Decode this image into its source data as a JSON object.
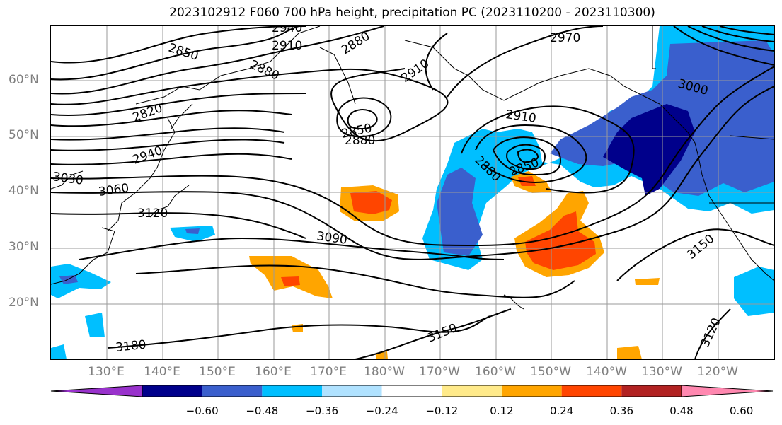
{
  "title": "2023102912 F060 700 hPa height, precipitation PC (2023110200 - 2023110300)",
  "lat_labels": [
    "60°N",
    "50°N",
    "40°N",
    "30°N",
    "20°N"
  ],
  "lon_labels": [
    "130°E",
    "140°E",
    "150°E",
    "160°E",
    "170°E",
    "180°W",
    "170°W",
    "160°W",
    "150°W",
    "140°W",
    "130°W",
    "120°W"
  ],
  "contour_labels": [
    "2850",
    "2910",
    "2880",
    "2940",
    "2970",
    "2820",
    "2880",
    "2910",
    "3000",
    "2910",
    "2850",
    "2880",
    "2940",
    "3030",
    "3060",
    "2880",
    "2850",
    "3120",
    "3090",
    "3150",
    "3150",
    "3180",
    "3120"
  ],
  "colorbar": {
    "ticks": [
      "−0.60",
      "−0.48",
      "−0.36",
      "−0.24",
      "−0.12",
      "0.12",
      "0.24",
      "0.36",
      "0.48",
      "0.60"
    ],
    "colors": [
      "#9932cc",
      "#00008b",
      "#3a5fcd",
      "#00bfff",
      "#b0e2ff",
      "#ffffff",
      "#ffea8a",
      "#ffa500",
      "#ff4500",
      "#b22222",
      "#ff88b0"
    ]
  }
}
